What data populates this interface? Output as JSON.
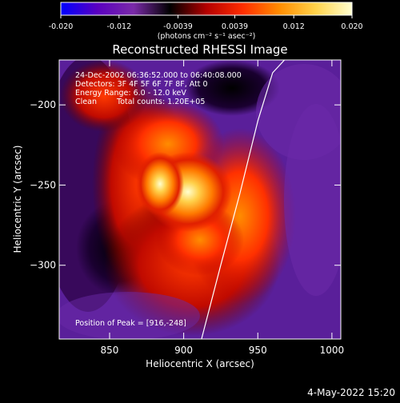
{
  "colorbar": {
    "ticks": [
      "-0.020",
      "-0.012",
      "-0.0039",
      "0.0039",
      "0.012",
      "0.020"
    ],
    "unit_label": "(photons cm⁻² s⁻¹ asec⁻²)",
    "min": -0.02,
    "max": 0.02,
    "colormap": [
      "#0000ff",
      "#5a00c0",
      "#7a2aa8",
      "#000000",
      "#b40000",
      "#ff2d00",
      "#ff8c00",
      "#ffd24a",
      "#ffffd0"
    ]
  },
  "annotations": {
    "line1": "24-Dec-2002 06:36:52.000 to 06:40:08.000",
    "line2": "Detectors: 3F 4F 5F 6F 7F 8F, Att 0",
    "line3": "Energy Range: 6.0 - 12.0 keV",
    "line4_left": "Clean",
    "line4_right": "Total counts: 1.20E+05",
    "peak": "Position of Peak = [916,-248]"
  },
  "footer": {
    "date": "4-May-2022 15:20"
  },
  "chart_data": {
    "type": "heatmap",
    "title": "Reconstructed RHESSI Image",
    "xlabel": "Heliocentric X (arcsec)",
    "ylabel": "Heliocentric Y (arcsec)",
    "xlim": [
      816,
      1006
    ],
    "ylim": [
      -346,
      -172
    ],
    "xticks": [
      850,
      900,
      950,
      1000
    ],
    "yticks": [
      -200,
      -250,
      -300
    ],
    "peak": [
      916,
      -248
    ],
    "limb_curve": {
      "x": [
        912,
        925,
        938,
        950,
        960,
        968
      ],
      "y": [
        -346,
        -300,
        -255,
        -210,
        -180,
        -172
      ]
    }
  }
}
